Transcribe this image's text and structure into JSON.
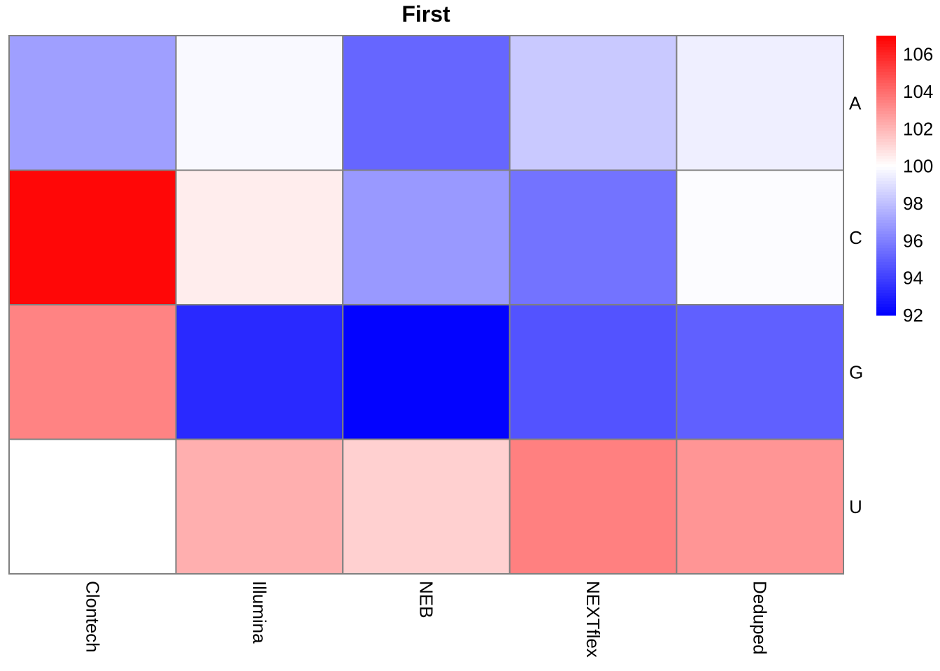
{
  "chart_data": {
    "type": "heatmap",
    "title": "First",
    "columns": [
      "Clontech",
      "Illumina",
      "NEB",
      "NEXTflex",
      "Deduped"
    ],
    "rows": [
      "A",
      "C",
      "G",
      "U"
    ],
    "values": [
      [
        97.0,
        99.8,
        95.2,
        98.3,
        99.5
      ],
      [
        106.8,
        100.5,
        96.8,
        95.6,
        99.9
      ],
      [
        103.4,
        93.3,
        92.1,
        94.6,
        95.0
      ],
      [
        100.0,
        102.2,
        101.3,
        103.5,
        102.9
      ]
    ],
    "color_scale": {
      "min": 92,
      "mid": 100,
      "max": 107,
      "low_color": "#0000ff",
      "mid_color": "#ffffff",
      "high_color": "#ff0000"
    },
    "legend": {
      "ticks": [
        106,
        104,
        102,
        100,
        98,
        96,
        94,
        92
      ],
      "placement": "right"
    },
    "cell_border_color": "#808080"
  }
}
